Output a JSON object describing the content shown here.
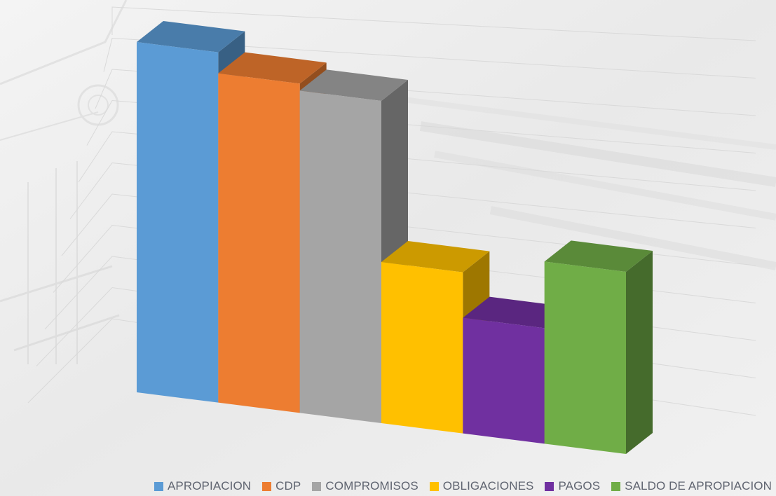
{
  "chart_data": {
    "type": "bar",
    "style": "3d-column",
    "categories": [
      "APROPIACION",
      "CDP",
      "COMPROMISOS",
      "OBLIGACIONES",
      "PAGOS",
      "SALDO DE APROPIACION"
    ],
    "values": [
      100,
      94,
      92,
      46,
      33,
      52
    ],
    "ylim": [
      0,
      100
    ],
    "grid": true,
    "legend_position": "bottom",
    "title": "",
    "xlabel": "",
    "ylabel": ""
  },
  "legend": [
    {
      "label": "APROPIACION",
      "color": "#5b9bd5"
    },
    {
      "label": "CDP",
      "color": "#ed7d31"
    },
    {
      "label": "COMPROMISOS",
      "color": "#a5a5a5"
    },
    {
      "label": "OBLIGACIONES",
      "color": "#ffc000"
    },
    {
      "label": "PAGOS",
      "color": "#7030a0"
    },
    {
      "label": "SALDO DE APROPIACION",
      "color": "#70ad47"
    }
  ]
}
